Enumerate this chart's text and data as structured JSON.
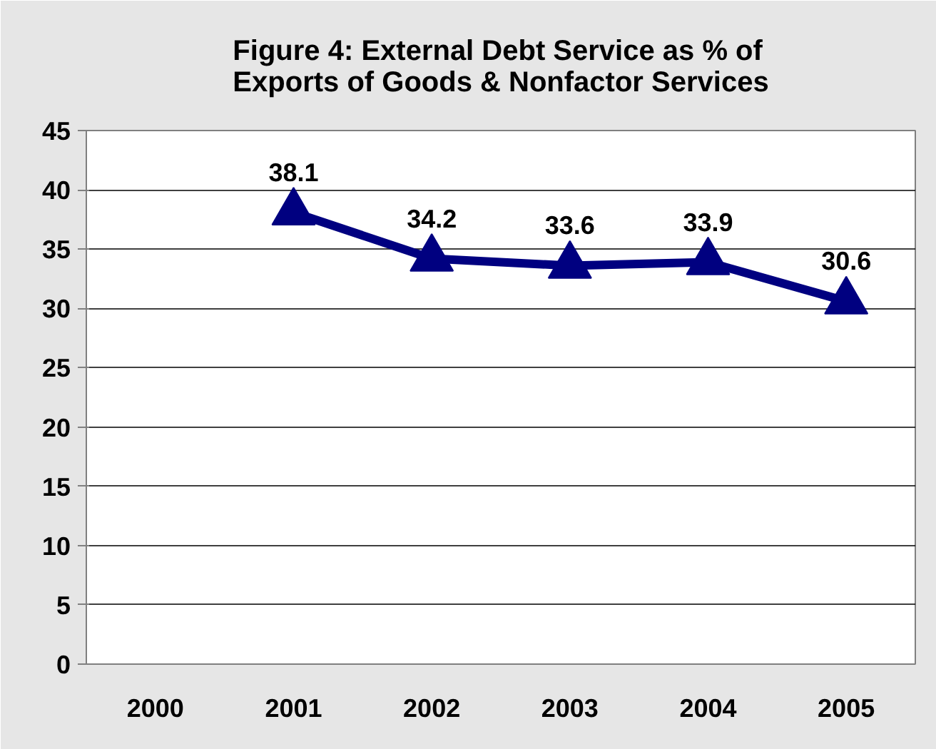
{
  "chart_data": {
    "type": "line",
    "title": "Figure 4: External Debt Service as % of\nExports of Goods & Nonfactor Services",
    "categories": [
      "2000",
      "2001",
      "2002",
      "2003",
      "2004",
      "2005"
    ],
    "series": [
      {
        "color": "#000080",
        "values": [
          null,
          38.1,
          34.2,
          33.6,
          33.9,
          30.6
        ]
      }
    ],
    "ylim": [
      0,
      45
    ],
    "yticks": [
      0,
      5,
      10,
      15,
      20,
      25,
      30,
      35,
      40,
      45
    ],
    "grid": "y",
    "marker": "triangle",
    "line_style": "solid",
    "data_labels": true
  }
}
